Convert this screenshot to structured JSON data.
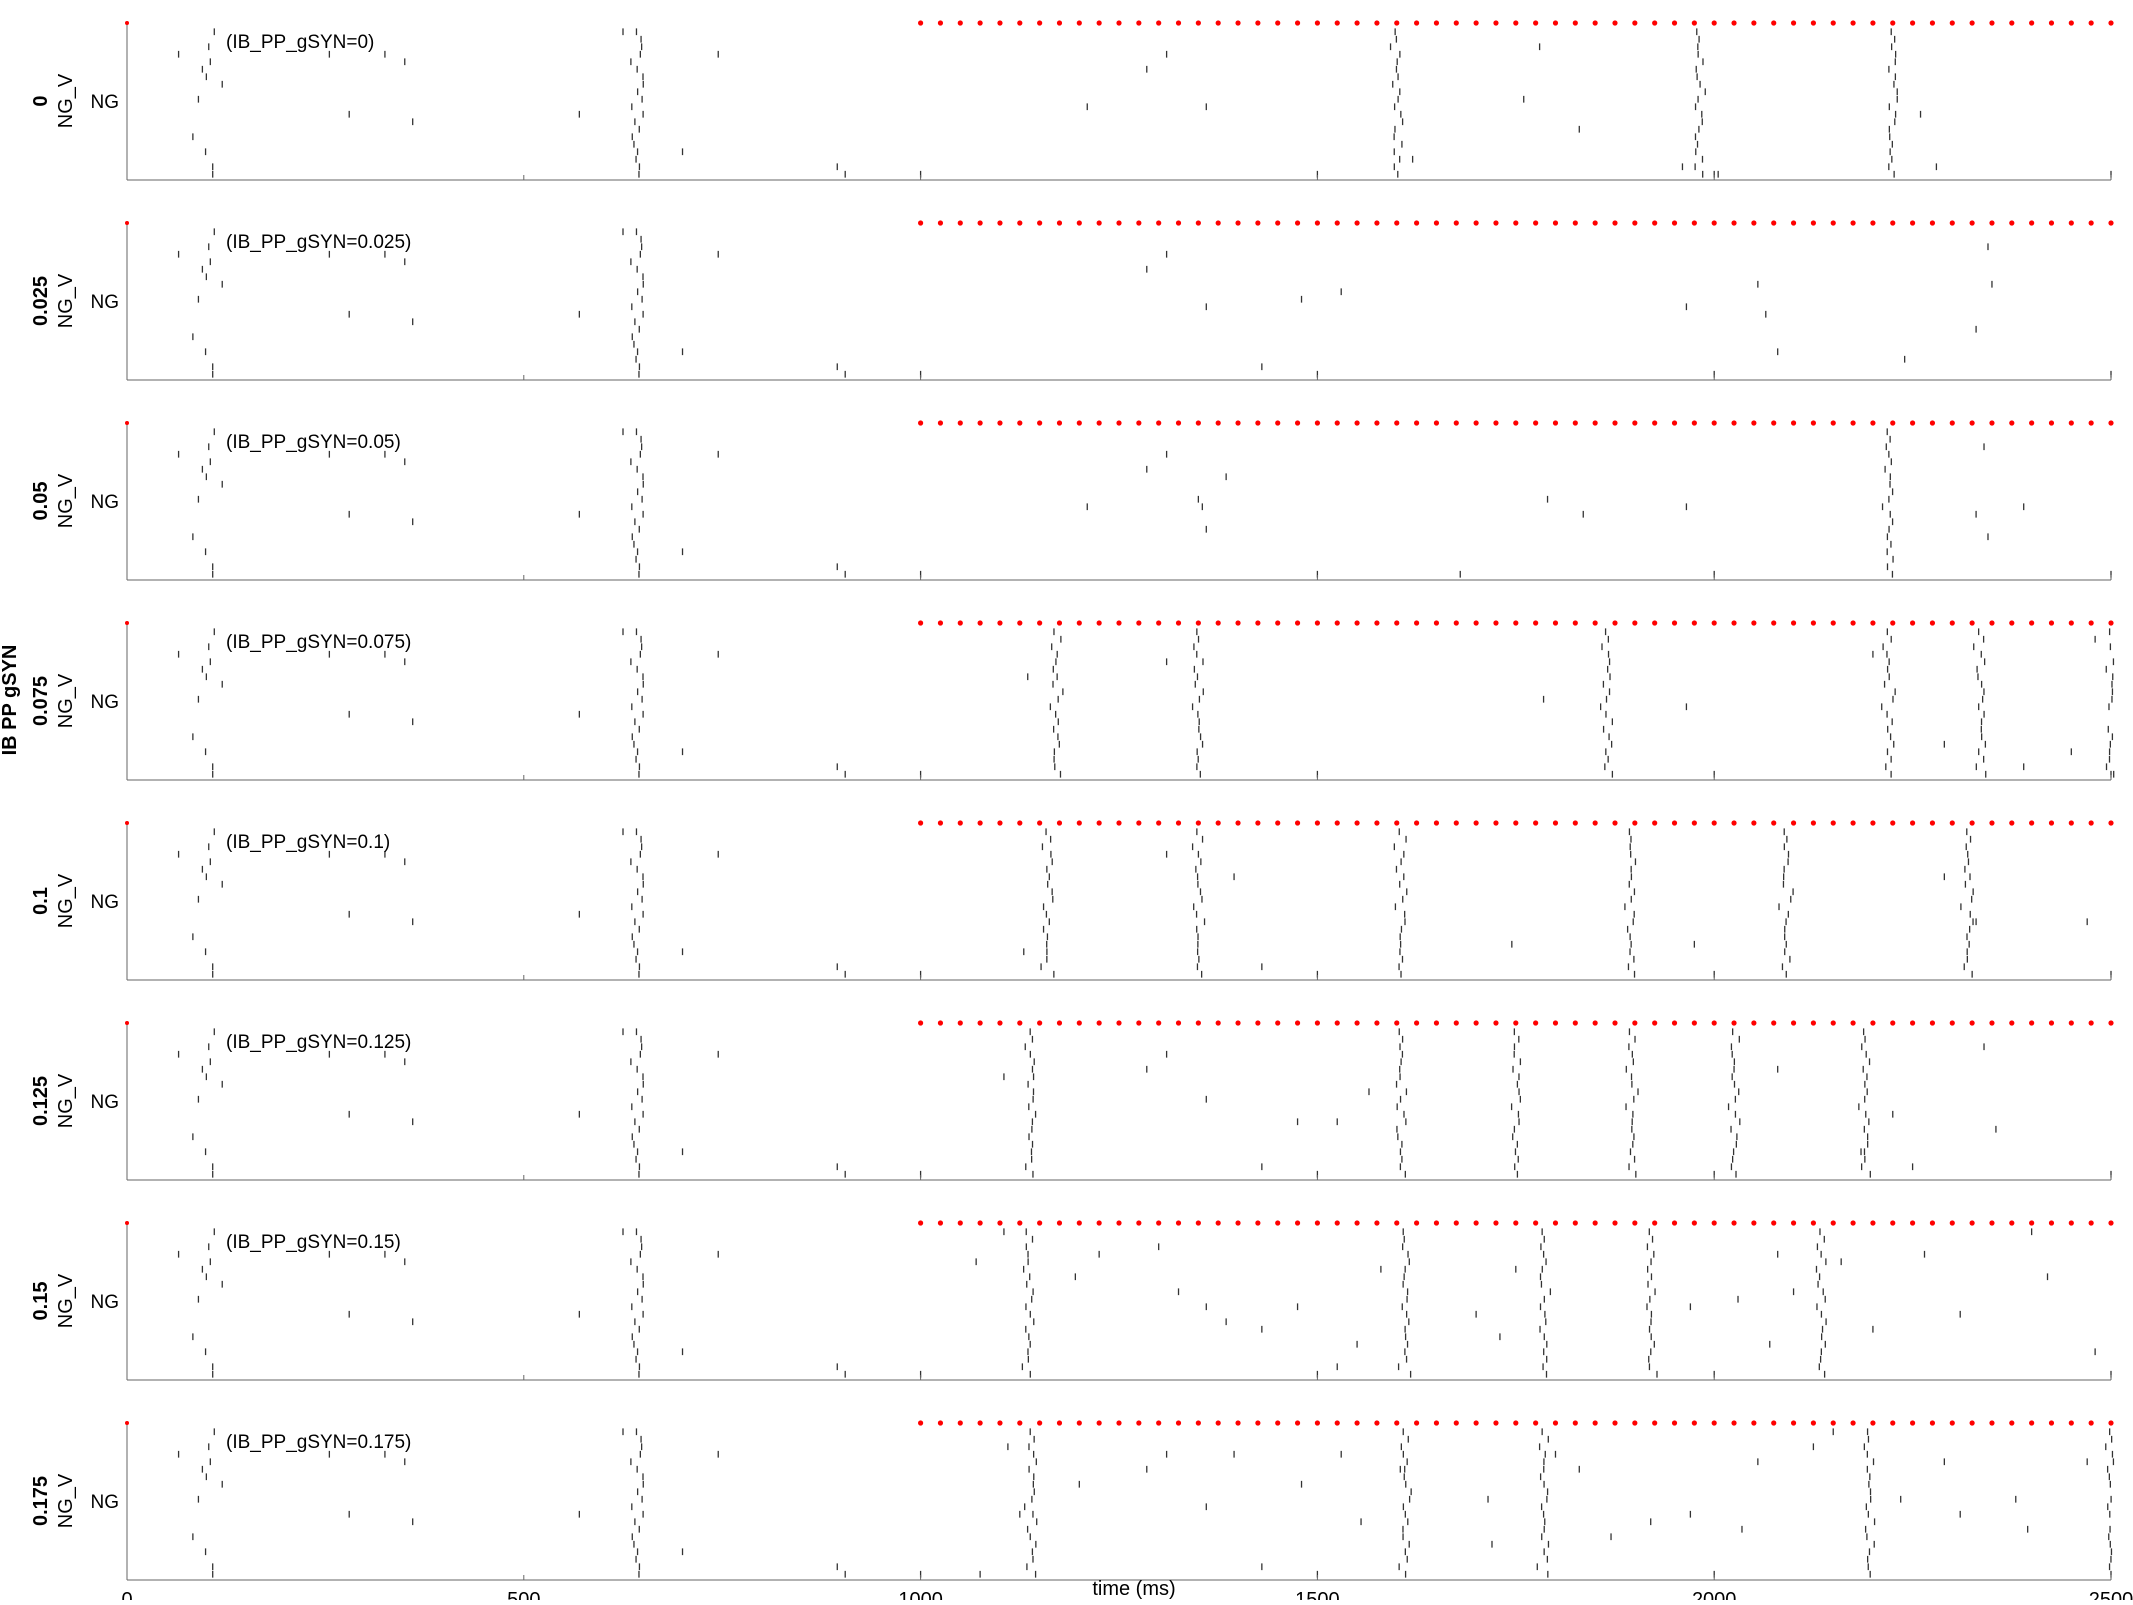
{
  "figure": {
    "group_label": "IB PP gSYN",
    "xlabel": "time (ms)",
    "row_ylabel": "NG_V",
    "row_tick_label": "NG",
    "spike_color": "#333333",
    "marker_color": "#ff0000",
    "axis_color": "#666666"
  },
  "chart_data": {
    "type": "scatter",
    "xlim": [
      0,
      2500
    ],
    "xticks": [
      0,
      500,
      1000,
      1500,
      2000,
      2500
    ],
    "xtick_labels": [
      "0",
      "500",
      "1000",
      "1500",
      "2000",
      "2500"
    ],
    "n_cells": 20,
    "marker_x_start": 1000,
    "marker_x_end": 2500,
    "marker_spacing": 25,
    "baseline": [
      [
        65,
        3
      ],
      [
        108,
        18
      ],
      [
        120,
        7
      ],
      [
        255,
        3
      ],
      [
        280,
        11
      ],
      [
        325,
        3
      ],
      [
        360,
        12
      ],
      [
        350,
        4
      ],
      [
        570,
        11
      ],
      [
        625,
        0
      ],
      [
        700,
        16
      ],
      [
        745,
        3
      ],
      [
        905,
        19
      ],
      [
        895,
        18
      ],
      [
        1000,
        19
      ],
      [
        1500,
        19
      ],
      [
        2000,
        19
      ],
      [
        2500,
        19
      ]
    ],
    "burst_base_offsets": [
      0,
      2,
      -3,
      1,
      3,
      -2,
      0,
      -1,
      4,
      2,
      -4,
      1,
      3,
      -1,
      0,
      2,
      -2,
      1,
      -3,
      3
    ],
    "panels": [
      {
        "label": "0",
        "annotation": "(IB_PP_gSYN=0)",
        "bursts": [
          1600,
          1980,
          2225
        ],
        "scatter": [
          [
            1310,
            3
          ],
          [
            1210,
            10
          ],
          [
            1285,
            5
          ],
          [
            1360,
            10
          ],
          [
            1620,
            17
          ],
          [
            1780,
            2
          ],
          [
            1830,
            13
          ],
          [
            1760,
            9
          ],
          [
            1960,
            18
          ],
          [
            2005,
            19
          ],
          [
            2260,
            11
          ],
          [
            2280,
            18
          ]
        ]
      },
      {
        "label": "0.025",
        "annotation": "(IB_PP_gSYN=0.025)",
        "bursts": [],
        "scatter": [
          [
            1310,
            3
          ],
          [
            1285,
            5
          ],
          [
            1360,
            10
          ],
          [
            1480,
            9
          ],
          [
            1530,
            8
          ],
          [
            1430,
            18
          ],
          [
            1965,
            10
          ],
          [
            2055,
            7
          ],
          [
            2065,
            11
          ],
          [
            2080,
            16
          ],
          [
            2240,
            17
          ],
          [
            2330,
            13
          ],
          [
            2345,
            2
          ],
          [
            2350,
            7
          ]
        ]
      },
      {
        "label": "0.05",
        "annotation": "(IB_PP_gSYN=0.05)",
        "bursts": [
          2220
        ],
        "scatter": [
          [
            1310,
            3
          ],
          [
            1285,
            5
          ],
          [
            1210,
            10
          ],
          [
            1350,
            9
          ],
          [
            1355,
            10
          ],
          [
            1385,
            6
          ],
          [
            1360,
            13
          ],
          [
            1680,
            19
          ],
          [
            1790,
            9
          ],
          [
            1835,
            11
          ],
          [
            1965,
            10
          ],
          [
            2340,
            2
          ],
          [
            2330,
            11
          ],
          [
            2390,
            10
          ],
          [
            2345,
            14
          ]
        ]
      },
      {
        "label": "0.075",
        "annotation": "(IB_PP_gSYN=0.075)",
        "bursts": [
          1170,
          1350,
          1865,
          2220,
          2335,
          2500
        ],
        "scatter": [
          [
            1135,
            6
          ],
          [
            1310,
            4
          ],
          [
            1785,
            9
          ],
          [
            1965,
            10
          ],
          [
            2200,
            3
          ],
          [
            2290,
            15
          ],
          [
            2390,
            18
          ],
          [
            2450,
            16
          ],
          [
            2480,
            1
          ]
        ]
      },
      {
        "label": "0.1",
        "annotation": "(IB_PP_gSYN=0.1)",
        "bursts": [
          1160,
          1350,
          1605,
          1895,
          2090,
          2320
        ],
        "scatter": [
          [
            1130,
            16
          ],
          [
            1310,
            3
          ],
          [
            1395,
            6
          ],
          [
            1430,
            18
          ],
          [
            1745,
            15
          ],
          [
            1975,
            15
          ],
          [
            2290,
            6
          ],
          [
            2330,
            12
          ],
          [
            2470,
            12
          ]
        ]
      },
      {
        "label": "0.125",
        "annotation": "(IB_PP_gSYN=0.125)",
        "bursts": [
          1140,
          1605,
          1750,
          1895,
          2025,
          2190
        ],
        "scatter": [
          [
            1105,
            6
          ],
          [
            1310,
            3
          ],
          [
            1285,
            5
          ],
          [
            1360,
            9
          ],
          [
            1430,
            18
          ],
          [
            1475,
            12
          ],
          [
            1525,
            12
          ],
          [
            1565,
            8
          ],
          [
            2080,
            5
          ],
          [
            2185,
            16
          ],
          [
            2225,
            11
          ],
          [
            2250,
            18
          ],
          [
            2340,
            2
          ],
          [
            2355,
            13
          ]
        ]
      },
      {
        "label": "0.15",
        "annotation": "(IB_PP_gSYN=0.15)",
        "bursts": [
          1135,
          1610,
          1785,
          1920,
          2135
        ],
        "scatter": [
          [
            1070,
            4
          ],
          [
            1105,
            0
          ],
          [
            1195,
            6
          ],
          [
            1225,
            3
          ],
          [
            1300,
            2
          ],
          [
            1325,
            8
          ],
          [
            1360,
            10
          ],
          [
            1385,
            12
          ],
          [
            1430,
            13
          ],
          [
            1475,
            10
          ],
          [
            1525,
            18
          ],
          [
            1550,
            15
          ],
          [
            1580,
            5
          ],
          [
            1700,
            11
          ],
          [
            1730,
            14
          ],
          [
            1750,
            5
          ],
          [
            1970,
            10
          ],
          [
            2030,
            9
          ],
          [
            2070,
            15
          ],
          [
            2080,
            3
          ],
          [
            2100,
            8
          ],
          [
            2160,
            4
          ],
          [
            2200,
            13
          ],
          [
            2265,
            3
          ],
          [
            2310,
            11
          ],
          [
            2400,
            0
          ],
          [
            2420,
            6
          ],
          [
            2480,
            16
          ]
        ]
      },
      {
        "label": "0.175",
        "annotation": "(IB_PP_gSYN=0.175)",
        "bursts": [
          1140,
          1610,
          1785,
          2195,
          2500
        ],
        "scatter": [
          [
            1075,
            19
          ],
          [
            1110,
            2
          ],
          [
            1125,
            11
          ],
          [
            1200,
            7
          ],
          [
            1310,
            3
          ],
          [
            1285,
            5
          ],
          [
            1360,
            10
          ],
          [
            1395,
            3
          ],
          [
            1430,
            18
          ],
          [
            1480,
            7
          ],
          [
            1530,
            3
          ],
          [
            1555,
            12
          ],
          [
            1610,
            5
          ],
          [
            1715,
            9
          ],
          [
            1720,
            15
          ],
          [
            1800,
            3
          ],
          [
            1830,
            5
          ],
          [
            1870,
            14
          ],
          [
            1920,
            12
          ],
          [
            1970,
            11
          ],
          [
            2035,
            13
          ],
          [
            2055,
            4
          ],
          [
            2125,
            2
          ],
          [
            2150,
            0
          ],
          [
            2235,
            9
          ],
          [
            2290,
            4
          ],
          [
            2310,
            11
          ],
          [
            2380,
            9
          ],
          [
            2395,
            13
          ],
          [
            2470,
            4
          ]
        ]
      }
    ]
  }
}
